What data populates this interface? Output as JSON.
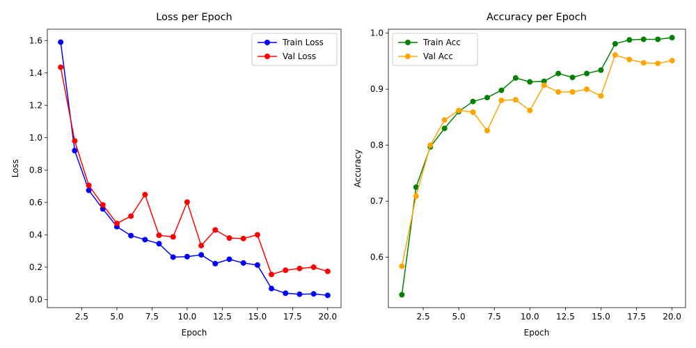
{
  "chart_data": [
    {
      "type": "line",
      "title": "Loss per Epoch",
      "xlabel": "Epoch",
      "ylabel": "Loss",
      "xlim": [
        0.05,
        20.95
      ],
      "ylim": [
        -0.05,
        1.67
      ],
      "xticks": [
        2.5,
        5.0,
        7.5,
        10.0,
        12.5,
        15.0,
        17.5,
        20.0
      ],
      "xtick_labels": [
        "2.5",
        "5.0",
        "7.5",
        "10.0",
        "12.5",
        "15.0",
        "17.5",
        "20.0"
      ],
      "yticks": [
        0.0,
        0.2,
        0.4,
        0.6,
        0.8,
        1.0,
        1.2,
        1.4,
        1.6
      ],
      "ytick_labels": [
        "0.0",
        "0.2",
        "0.4",
        "0.6",
        "0.8",
        "1.0",
        "1.2",
        "1.4",
        "1.6"
      ],
      "grid": false,
      "legend_position": "top-right",
      "x": [
        1,
        2,
        3,
        4,
        5,
        6,
        7,
        8,
        9,
        10,
        11,
        12,
        13,
        14,
        15,
        16,
        17,
        18,
        19,
        20
      ],
      "series": [
        {
          "name": "Train Loss",
          "color": "#0000ff",
          "values": [
            1.59,
            0.92,
            0.675,
            0.56,
            0.45,
            0.395,
            0.37,
            0.345,
            0.262,
            0.265,
            0.276,
            0.222,
            0.249,
            0.226,
            0.213,
            0.068,
            0.039,
            0.033,
            0.035,
            0.026
          ]
        },
        {
          "name": "Val Loss",
          "color": "#ff0000",
          "values": [
            1.435,
            0.98,
            0.705,
            0.585,
            0.47,
            0.515,
            0.648,
            0.397,
            0.387,
            0.602,
            0.333,
            0.43,
            0.38,
            0.377,
            0.4,
            0.155,
            0.181,
            0.192,
            0.2,
            0.174
          ]
        }
      ]
    },
    {
      "type": "line",
      "title": "Accuracy per Epoch",
      "xlabel": "Epoch",
      "ylabel": "Accuracy",
      "xlim": [
        0.05,
        20.95
      ],
      "ylim": [
        0.51,
        1.007
      ],
      "xticks": [
        2.5,
        5.0,
        7.5,
        10.0,
        12.5,
        15.0,
        17.5,
        20.0
      ],
      "xtick_labels": [
        "2.5",
        "5.0",
        "7.5",
        "10.0",
        "12.5",
        "15.0",
        "17.5",
        "20.0"
      ],
      "yticks": [
        0.6,
        0.7,
        0.8,
        0.9,
        1.0
      ],
      "ytick_labels": [
        "0.6",
        "0.7",
        "0.8",
        "0.9",
        "1.0"
      ],
      "grid": false,
      "legend_position": "top-left",
      "x": [
        1,
        2,
        3,
        4,
        5,
        6,
        7,
        8,
        9,
        10,
        11,
        12,
        13,
        14,
        15,
        16,
        17,
        18,
        19,
        20
      ],
      "series": [
        {
          "name": "Train Acc",
          "color": "#008000",
          "values": [
            0.533,
            0.725,
            0.797,
            0.83,
            0.86,
            0.878,
            0.885,
            0.898,
            0.92,
            0.913,
            0.914,
            0.928,
            0.921,
            0.928,
            0.934,
            0.981,
            0.988,
            0.989,
            0.989,
            0.992
          ]
        },
        {
          "name": "Val Acc",
          "color": "#ffa500",
          "values": [
            0.584,
            0.709,
            0.8,
            0.845,
            0.862,
            0.859,
            0.826,
            0.88,
            0.881,
            0.862,
            0.907,
            0.895,
            0.895,
            0.9,
            0.888,
            0.961,
            0.953,
            0.947,
            0.946,
            0.951
          ]
        }
      ]
    }
  ]
}
